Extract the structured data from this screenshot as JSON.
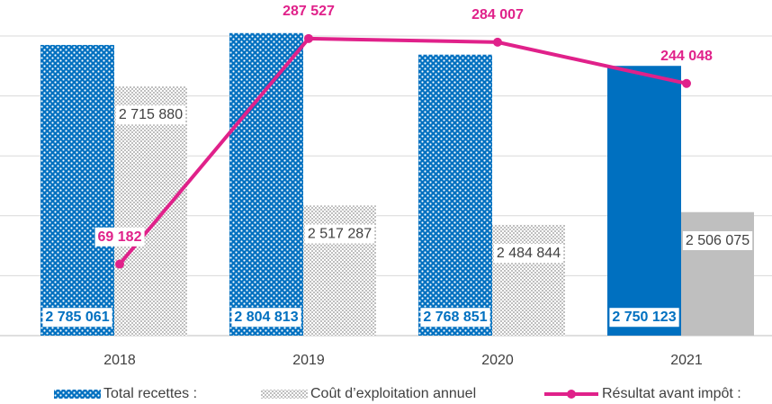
{
  "chart_data": {
    "type": "bar",
    "categories": [
      "2018",
      "2019",
      "2020",
      "2021"
    ],
    "ylim": [
      2300000,
      2800000
    ],
    "yticks": [
      2300000,
      2400000,
      2500000,
      2600000,
      2700000,
      2800000
    ],
    "y2lim": [
      0,
      290000
    ],
    "grid": true,
    "legend": "bottom",
    "series": [
      {
        "name": "Total recettes :",
        "type": "bar",
        "color": "#0070c0",
        "patterned": [
          true,
          true,
          true,
          false
        ],
        "values": [
          2785061,
          2804813,
          2768851,
          2750123
        ],
        "value_labels": [
          "2 785 061",
          "2 804 813",
          "2 768 851",
          "2 750 123"
        ]
      },
      {
        "name": "Coût d’exploitation annuel",
        "type": "bar",
        "color": "#bfbfbf",
        "patterned": [
          true,
          true,
          true,
          false
        ],
        "values": [
          2715880,
          2517287,
          2484844,
          2506075
        ],
        "value_labels": [
          "2 715 880",
          "2 517 287",
          "2 484 844",
          "2 506 075"
        ]
      },
      {
        "name": "Résultat avant impôt :",
        "type": "line",
        "axis": "y2",
        "color": "#e0218a",
        "values": [
          69182,
          287527,
          284007,
          244048
        ],
        "value_labels": [
          "69 182",
          "287 527",
          "284 007",
          "244 048"
        ]
      }
    ]
  }
}
